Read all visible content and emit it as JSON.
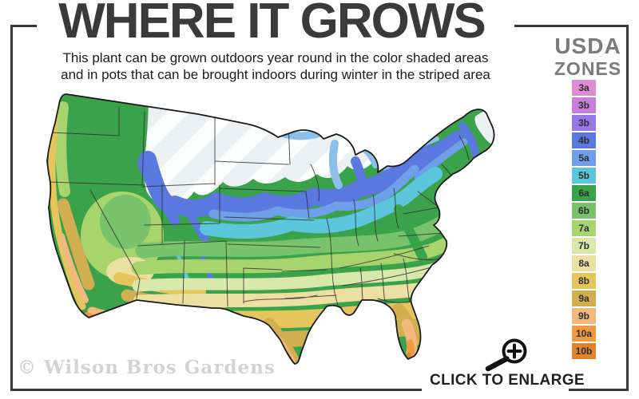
{
  "header": {
    "title": "WHERE IT GROWS",
    "subtitle_line1": "This plant can be grown outdoors year round in the color shaded areas",
    "subtitle_line2": "and in pots that can be brought indoors during winter in the striped area"
  },
  "legend": {
    "title_line1": "USDA",
    "title_line2": "ZONES",
    "items": [
      {
        "label": "3a",
        "color": "#df8cd5"
      },
      {
        "label": "3b",
        "color": "#c77fdb"
      },
      {
        "label": "3b",
        "color": "#9678e8"
      },
      {
        "label": "4b",
        "color": "#5a78e0"
      },
      {
        "label": "5a",
        "color": "#6f9fe8"
      },
      {
        "label": "5b",
        "color": "#5cc6dd"
      },
      {
        "label": "6a",
        "color": "#3aa24b"
      },
      {
        "label": "6b",
        "color": "#78c26c"
      },
      {
        "label": "7a",
        "color": "#a8d46d"
      },
      {
        "label": "7b",
        "color": "#d8e7aa"
      },
      {
        "label": "8a",
        "color": "#ecdfa2"
      },
      {
        "label": "8b",
        "color": "#e6c65c"
      },
      {
        "label": "9a",
        "color": "#d1af50"
      },
      {
        "label": "9b",
        "color": "#f1b97e"
      },
      {
        "label": "10a",
        "color": "#ef9a43"
      },
      {
        "label": "10b",
        "color": "#e08430"
      }
    ]
  },
  "map": {
    "striped_area_color": "#edf0f3",
    "stripe_color": "#ffffff",
    "lake_color": "#8cc0ea",
    "border_color": "#1a1a1a",
    "state_line_color": "#2d2d2d"
  },
  "footer": {
    "watermark": "© Wilson Bros Gardens",
    "cta_label": "CLICK TO ENLARGE"
  },
  "icons": {
    "magnifier": "magnifying-glass-plus-icon"
  },
  "colors": {
    "frame": "#3a3a3a",
    "title": "#3a3a3a",
    "subtitle": "#1b1b1b",
    "legend_title": "#7b7b7b",
    "watermark": "#d3d3d3",
    "cta": "#1f1f1f"
  }
}
